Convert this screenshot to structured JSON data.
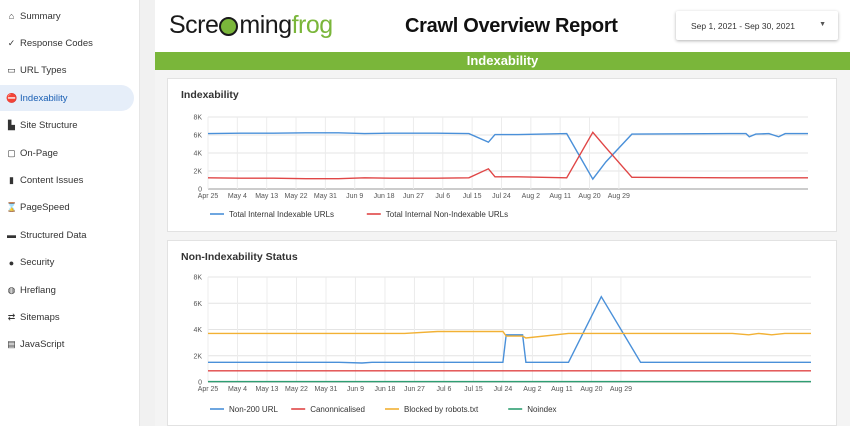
{
  "sidebar": {
    "items": [
      {
        "icon": "home-icon",
        "glyph": "⌂",
        "label": "Summary"
      },
      {
        "icon": "checkmark-icon",
        "glyph": "✓",
        "label": "Response Codes"
      },
      {
        "icon": "link-icon",
        "glyph": "▭",
        "label": "URL Types"
      },
      {
        "icon": "no-entry-icon",
        "glyph": "⛔",
        "label": "Indexability",
        "active": true
      },
      {
        "icon": "site-structure-icon",
        "glyph": "▙",
        "label": "Site Structure"
      },
      {
        "icon": "page-icon",
        "glyph": "▢",
        "label": "On-Page"
      },
      {
        "icon": "book-icon",
        "glyph": "▮",
        "label": "Content Issues"
      },
      {
        "icon": "hourglass-icon",
        "glyph": "⌛",
        "label": "PageSpeed"
      },
      {
        "icon": "laptop-icon",
        "glyph": "▬",
        "label": "Structured Data"
      },
      {
        "icon": "lock-icon",
        "glyph": "●",
        "label": "Security"
      },
      {
        "icon": "globe-icon",
        "glyph": "◍",
        "label": "Hreflang"
      },
      {
        "icon": "map-icon",
        "glyph": "⇄",
        "label": "Sitemaps"
      },
      {
        "icon": "scroll-icon",
        "glyph": "▤",
        "label": "JavaScript"
      }
    ]
  },
  "header": {
    "logo_pre": "Scre",
    "logo_post": "ming",
    "logo_frog": "frog",
    "title": "Crawl Overview Report",
    "date_range": "Sep 1, 2021 - Sep 30, 2021"
  },
  "banner": "Indexability",
  "chart_data": [
    {
      "type": "line",
      "title": "Indexability",
      "x": [
        "Apr 25",
        "May 4",
        "May 13",
        "May 22",
        "May 31",
        "Jun 9",
        "Jun 18",
        "Jun 27",
        "Jul 6",
        "Jul 15",
        "Jul 24",
        "Aug 2",
        "Aug 11",
        "Aug 20",
        "Aug 29"
      ],
      "ylim": [
        0,
        8000
      ],
      "yticks": [
        0,
        2000,
        4000,
        6000,
        8000
      ],
      "ytick_labels": [
        "0",
        "2K",
        "4K",
        "6K",
        "8K"
      ],
      "legend_position": "bottom-left",
      "series": [
        {
          "name": "Total Internal Indexable URLs",
          "color": "#4a90d9",
          "points": [
            [
              0,
              6150
            ],
            [
              10,
              6200
            ],
            [
              20,
              6200
            ],
            [
              30,
              6250
            ],
            [
              40,
              6250
            ],
            [
              48,
              6150
            ],
            [
              56,
              6200
            ],
            [
              70,
              6200
            ],
            [
              80,
              6150
            ],
            [
              86,
              5200
            ],
            [
              88,
              6050
            ],
            [
              95,
              6050
            ],
            [
              110,
              6150
            ],
            [
              118,
              1100
            ],
            [
              122,
              3000
            ],
            [
              130,
              6100
            ],
            [
              160,
              6150
            ],
            [
              165,
              6150
            ],
            [
              166,
              5800
            ],
            [
              168,
              6100
            ],
            [
              172,
              6150
            ],
            [
              175,
              5800
            ],
            [
              177,
              6150
            ],
            [
              184,
              6150
            ]
          ]
        },
        {
          "name": "Total Internal Non-Indexable URLs",
          "color": "#e04646",
          "points": [
            [
              0,
              1250
            ],
            [
              10,
              1200
            ],
            [
              20,
              1200
            ],
            [
              30,
              1150
            ],
            [
              40,
              1150
            ],
            [
              48,
              1250
            ],
            [
              56,
              1200
            ],
            [
              70,
              1200
            ],
            [
              80,
              1250
            ],
            [
              86,
              2250
            ],
            [
              88,
              1350
            ],
            [
              95,
              1350
            ],
            [
              110,
              1250
            ],
            [
              118,
              6300
            ],
            [
              122,
              4600
            ],
            [
              130,
              1300
            ],
            [
              160,
              1250
            ],
            [
              184,
              1250
            ]
          ]
        }
      ]
    },
    {
      "type": "line",
      "title": "Non-Indexability Status",
      "x": [
        "Apr 25",
        "May 4",
        "May 13",
        "May 22",
        "May 31",
        "Jun 9",
        "Jun 18",
        "Jun 27",
        "Jul 6",
        "Jul 15",
        "Jul 24",
        "Aug 2",
        "Aug 11",
        "Aug 20",
        "Aug 29"
      ],
      "ylim": [
        0,
        8000
      ],
      "yticks": [
        0,
        2000,
        4000,
        6000,
        8000
      ],
      "ytick_labels": [
        "0",
        "2K",
        "4K",
        "6K",
        "8K"
      ],
      "legend_position": "bottom-left",
      "series": [
        {
          "name": "Non-200 URL",
          "color": "#4a90d9",
          "points": [
            [
              0,
              1500
            ],
            [
              20,
              1500
            ],
            [
              40,
              1500
            ],
            [
              47,
              1450
            ],
            [
              50,
              1500
            ],
            [
              90,
              1500
            ],
            [
              91,
              3600
            ],
            [
              96,
              3600
            ],
            [
              97,
              1500
            ],
            [
              110,
              1500
            ],
            [
              120,
              6500
            ],
            [
              132,
              1500
            ],
            [
              184,
              1500
            ]
          ]
        },
        {
          "name": "Canonnicalised",
          "color": "#e04646",
          "points": [
            [
              0,
              850
            ],
            [
              184,
              850
            ]
          ]
        },
        {
          "name": "Blocked by robots.txt",
          "color": "#f2b134",
          "points": [
            [
              0,
              3700
            ],
            [
              60,
              3700
            ],
            [
              70,
              3850
            ],
            [
              90,
              3850
            ],
            [
              91,
              3500
            ],
            [
              96,
              3500
            ],
            [
              97,
              3350
            ],
            [
              110,
              3700
            ],
            [
              160,
              3700
            ],
            [
              165,
              3600
            ],
            [
              168,
              3700
            ],
            [
              172,
              3600
            ],
            [
              176,
              3700
            ],
            [
              184,
              3700
            ]
          ]
        },
        {
          "name": "Noindex",
          "color": "#2e9e72",
          "points": [
            [
              0,
              30
            ],
            [
              184,
              30
            ]
          ]
        }
      ]
    }
  ]
}
